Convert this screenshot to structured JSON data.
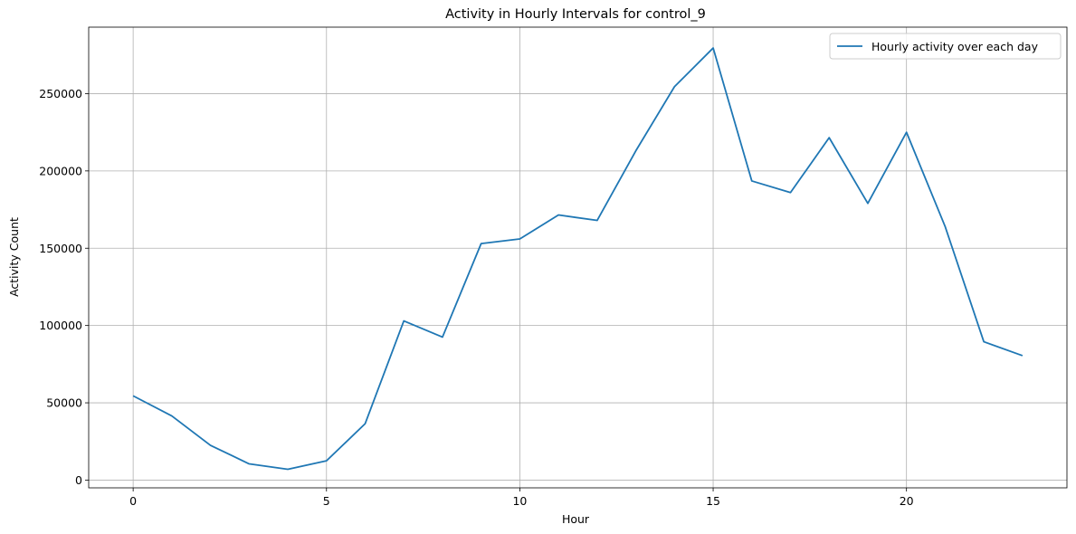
{
  "chart_data": {
    "type": "line",
    "title": "Activity in Hourly Intervals for control_9",
    "xlabel": "Hour",
    "ylabel": "Activity Count",
    "xlim": [
      -1.15,
      24.15
    ],
    "ylim": [
      -5000,
      293000
    ],
    "x_ticks": [
      0,
      5,
      10,
      15,
      20
    ],
    "y_ticks": [
      0,
      50000,
      100000,
      150000,
      200000,
      250000
    ],
    "grid": true,
    "legend_position": "top-right",
    "colors": {
      "series": "#1f77b4",
      "grid": "#b0b0b0",
      "axis": "#000000"
    },
    "series": [
      {
        "name": "Hourly activity over each day",
        "x": [
          0,
          1,
          2,
          3,
          4,
          5,
          6,
          7,
          8,
          9,
          10,
          11,
          12,
          13,
          14,
          15,
          16,
          17,
          18,
          19,
          20,
          21,
          22,
          23
        ],
        "values": [
          54500,
          41500,
          22500,
          10500,
          7000,
          12500,
          36500,
          103000,
          92500,
          153000,
          156000,
          171500,
          168000,
          213000,
          254500,
          279500,
          193500,
          186000,
          221500,
          179000,
          225000,
          164000,
          89500,
          80500
        ]
      }
    ]
  }
}
